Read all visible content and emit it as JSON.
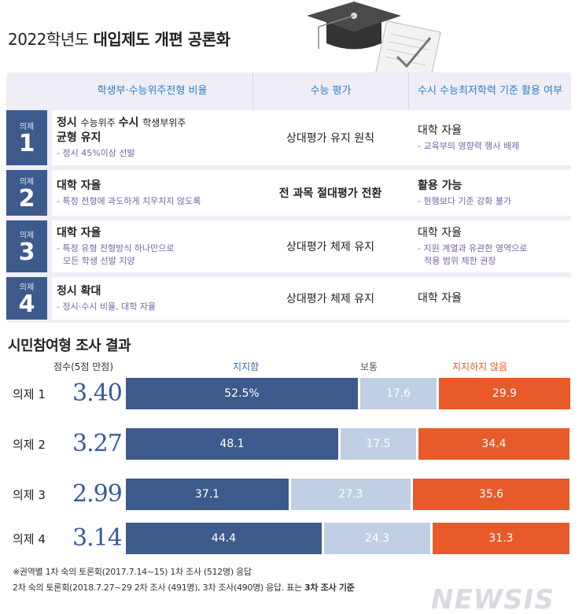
{
  "title": {
    "light": "2022학년도 ",
    "bold": "대입제도 개편 공론화"
  },
  "table": {
    "headers": [
      "학생부·수능위주전형 비율",
      "수능 평가",
      "수시 수능최저학력 기준 활용 여부"
    ],
    "rows": [
      {
        "label_small": "의제",
        "num": "1",
        "c1_main_a": "정시 ",
        "c1_main_b": "수능위주 ",
        "c1_main_c": "수시 ",
        "c1_main_d": "학생부위주",
        "c1_main_e": "균형 유지",
        "c1_sub": "- 정시 45%이상 선발",
        "c2": "상대평가 유지 원칙",
        "c3_main": "대학 자율",
        "c3_sub": "- 교육부의 영향력 행사 배제"
      },
      {
        "label_small": "의제",
        "num": "2",
        "c1_main": "대학 자율",
        "c1_sub": "- 특정 전형에 과도하게 치우치지 않도록",
        "c2": "전 과목 절대평가 전환",
        "c3_main": "활용 가능",
        "c3_sub": "- 현행보다 기준 강화 불가"
      },
      {
        "label_small": "의제",
        "num": "3",
        "c1_main": "대학 자율",
        "c1_sub": "- 특정 유형 전형방식 하나만으로",
        "c1_sub2": "모든 학생 선발 지양",
        "c2": "상대평가 체제 유지",
        "c3_main": "대학 자율",
        "c3_sub": "- 지원 계열과 유관한 영역으로",
        "c3_sub2": "적용 범위 제한 권장"
      },
      {
        "label_small": "의제",
        "num": "4",
        "c1_main": "정시 확대",
        "c1_sub": "- 정시·수시 비율, 대학 자율",
        "c2": "상대평가 체제 유지",
        "c3_main": "대학 자율"
      }
    ]
  },
  "survey": {
    "title": "시민참여형 조사 결과",
    "col_score": "점수(5점 만점)",
    "col_yes": "지지함",
    "col_mid": "보통",
    "col_no": "지지하지 않음"
  },
  "chart_data": {
    "type": "bar",
    "stacked": true,
    "orientation": "horizontal",
    "categories": [
      "의제 1",
      "의제 2",
      "의제 3",
      "의제 4"
    ],
    "scores": [
      "3.40",
      "3.27",
      "2.99",
      "3.14"
    ],
    "series": [
      {
        "name": "지지함",
        "values": [
          52.5,
          48.1,
          37.1,
          44.4
        ],
        "labels": [
          "52.5%",
          "48.1",
          "37.1",
          "44.4"
        ],
        "color": "#3d5a8c"
      },
      {
        "name": "보통",
        "values": [
          17.6,
          17.5,
          27.3,
          24.3
        ],
        "labels": [
          "17.6",
          "17.5",
          "27.3",
          "24.3"
        ],
        "color": "#c0cfe4"
      },
      {
        "name": "지지하지 않음",
        "values": [
          29.9,
          34.4,
          35.6,
          31.3
        ],
        "labels": [
          "29.9",
          "34.4",
          "35.6",
          "31.3"
        ],
        "color": "#e85a2a"
      }
    ]
  },
  "notes": {
    "line1": "※권역별 1차 숙의 토론회(2017.7.14~15) 1차 조사 (512명) 응답",
    "line2a": "2차 숙의 토론회(2018.7.27~29 2차 조사 (491명), 3차 조사(490명) 응답. 표는 ",
    "line2b": "3차 조사 기준"
  },
  "logo": "NEWSIS",
  "colors": {
    "navy": "#3d5a8c",
    "light": "#c0cfe4",
    "orange": "#e85a2a",
    "header_blue": "#2c7fc6",
    "purple": "#7b62a8"
  }
}
